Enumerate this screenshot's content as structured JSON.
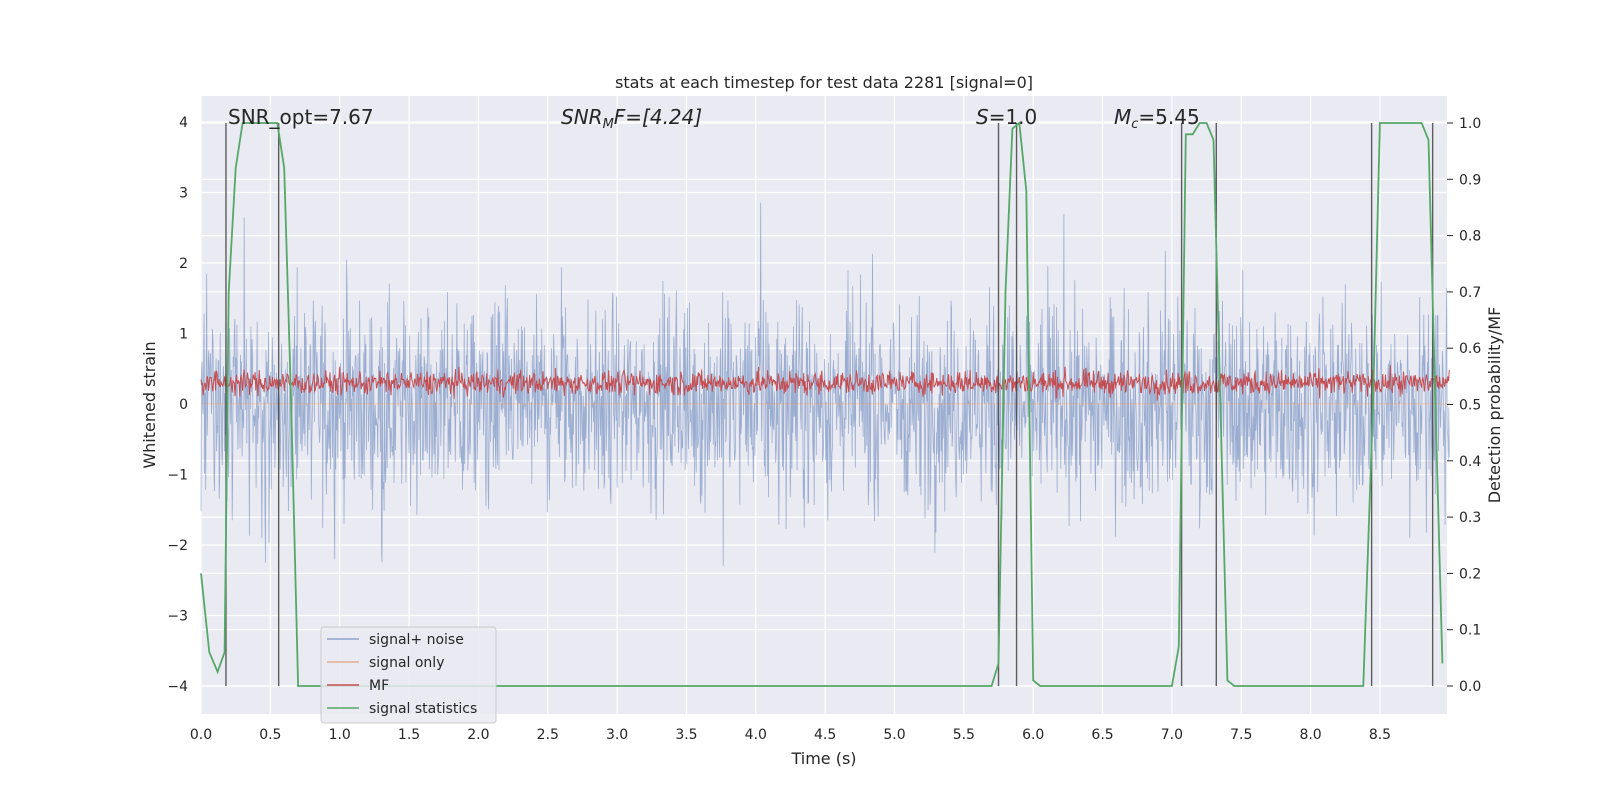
{
  "chart_data": {
    "type": "line",
    "title": "stats at each timestep for test data 2281 [signal=0]",
    "xlabel": "Time (s)",
    "ylabel": "Whitened strain",
    "y2label": "Detection probability/MF",
    "xlim": [
      0,
      9.0
    ],
    "ylim": [
      -4.2,
      4.4
    ],
    "y2lim": [
      -0.02,
      1.035
    ],
    "x_ticks": [
      0.0,
      0.5,
      1.0,
      1.5,
      2.0,
      2.5,
      3.0,
      3.5,
      4.0,
      4.5,
      5.0,
      5.5,
      6.0,
      6.5,
      7.0,
      7.5,
      8.0,
      8.5
    ],
    "y_ticks": [
      4,
      3,
      2,
      1,
      0,
      -1,
      -2,
      -3,
      -4
    ],
    "y2_ticks": [
      1.0,
      0.9,
      0.8,
      0.7,
      0.6,
      0.5,
      0.4,
      0.3,
      0.2,
      0.1,
      0.0
    ],
    "annotations": {
      "snr_opt": "SNR_opt=7.67",
      "snr_mf_name": "SNR",
      "snr_mf_sub": "M",
      "snr_mf_tail": "F=[4.24]",
      "s_name": "S",
      "s_value": "=1.0",
      "mc_name": "M",
      "mc_sub": "c",
      "mc_value": "=5.45"
    },
    "series": [
      {
        "name": "signal+ noise",
        "color": "#4c72b0",
        "opacity": 0.5,
        "kind": "noise",
        "amplitude_range": [
          -4,
          4
        ]
      },
      {
        "name": "signal only",
        "color": "#dd8452",
        "opacity": 0.5,
        "kind": "flat",
        "value": 0
      },
      {
        "name": "MF",
        "color": "#c44e52",
        "kind": "mf",
        "center": 0.3,
        "range": [
          0.0,
          0.95
        ]
      },
      {
        "name": "signal statistics",
        "color": "#55a868",
        "axis": "right",
        "x": [
          0.0,
          0.06,
          0.12,
          0.17,
          0.2,
          0.25,
          0.3,
          0.4,
          0.5,
          0.55,
          0.6,
          0.65,
          0.7,
          0.9,
          1.5,
          2.0,
          3.0,
          4.0,
          5.0,
          5.5,
          5.7,
          5.75,
          5.8,
          5.85,
          5.9,
          5.95,
          6.0,
          6.05,
          6.5,
          7.0,
          7.05,
          7.1,
          7.15,
          7.2,
          7.25,
          7.3,
          7.35,
          7.4,
          7.45,
          7.6,
          8.0,
          8.38,
          8.45,
          8.5,
          8.6,
          8.7,
          8.8,
          8.85,
          8.9,
          8.95
        ],
        "values": [
          0.2,
          0.06,
          0.025,
          0.06,
          0.7,
          0.92,
          1.0,
          1.0,
          1.0,
          1.0,
          0.92,
          0.5,
          0.0,
          0.0,
          0.0,
          0.0,
          0.0,
          0.0,
          0.0,
          0.0,
          0.0,
          0.04,
          0.7,
          0.99,
          1.0,
          0.88,
          0.01,
          0.0,
          0.0,
          0.0,
          0.07,
          0.98,
          0.98,
          1.0,
          1.0,
          0.97,
          0.5,
          0.01,
          0.0,
          0.0,
          0.0,
          0.0,
          0.5,
          1.0,
          1.0,
          1.0,
          1.0,
          0.97,
          0.5,
          0.04
        ]
      }
    ],
    "vertical_lines": [
      0.18,
      0.56,
      5.75,
      5.88,
      7.07,
      7.32,
      8.44,
      8.88
    ],
    "legend_position": "lower-left",
    "grid": true
  }
}
